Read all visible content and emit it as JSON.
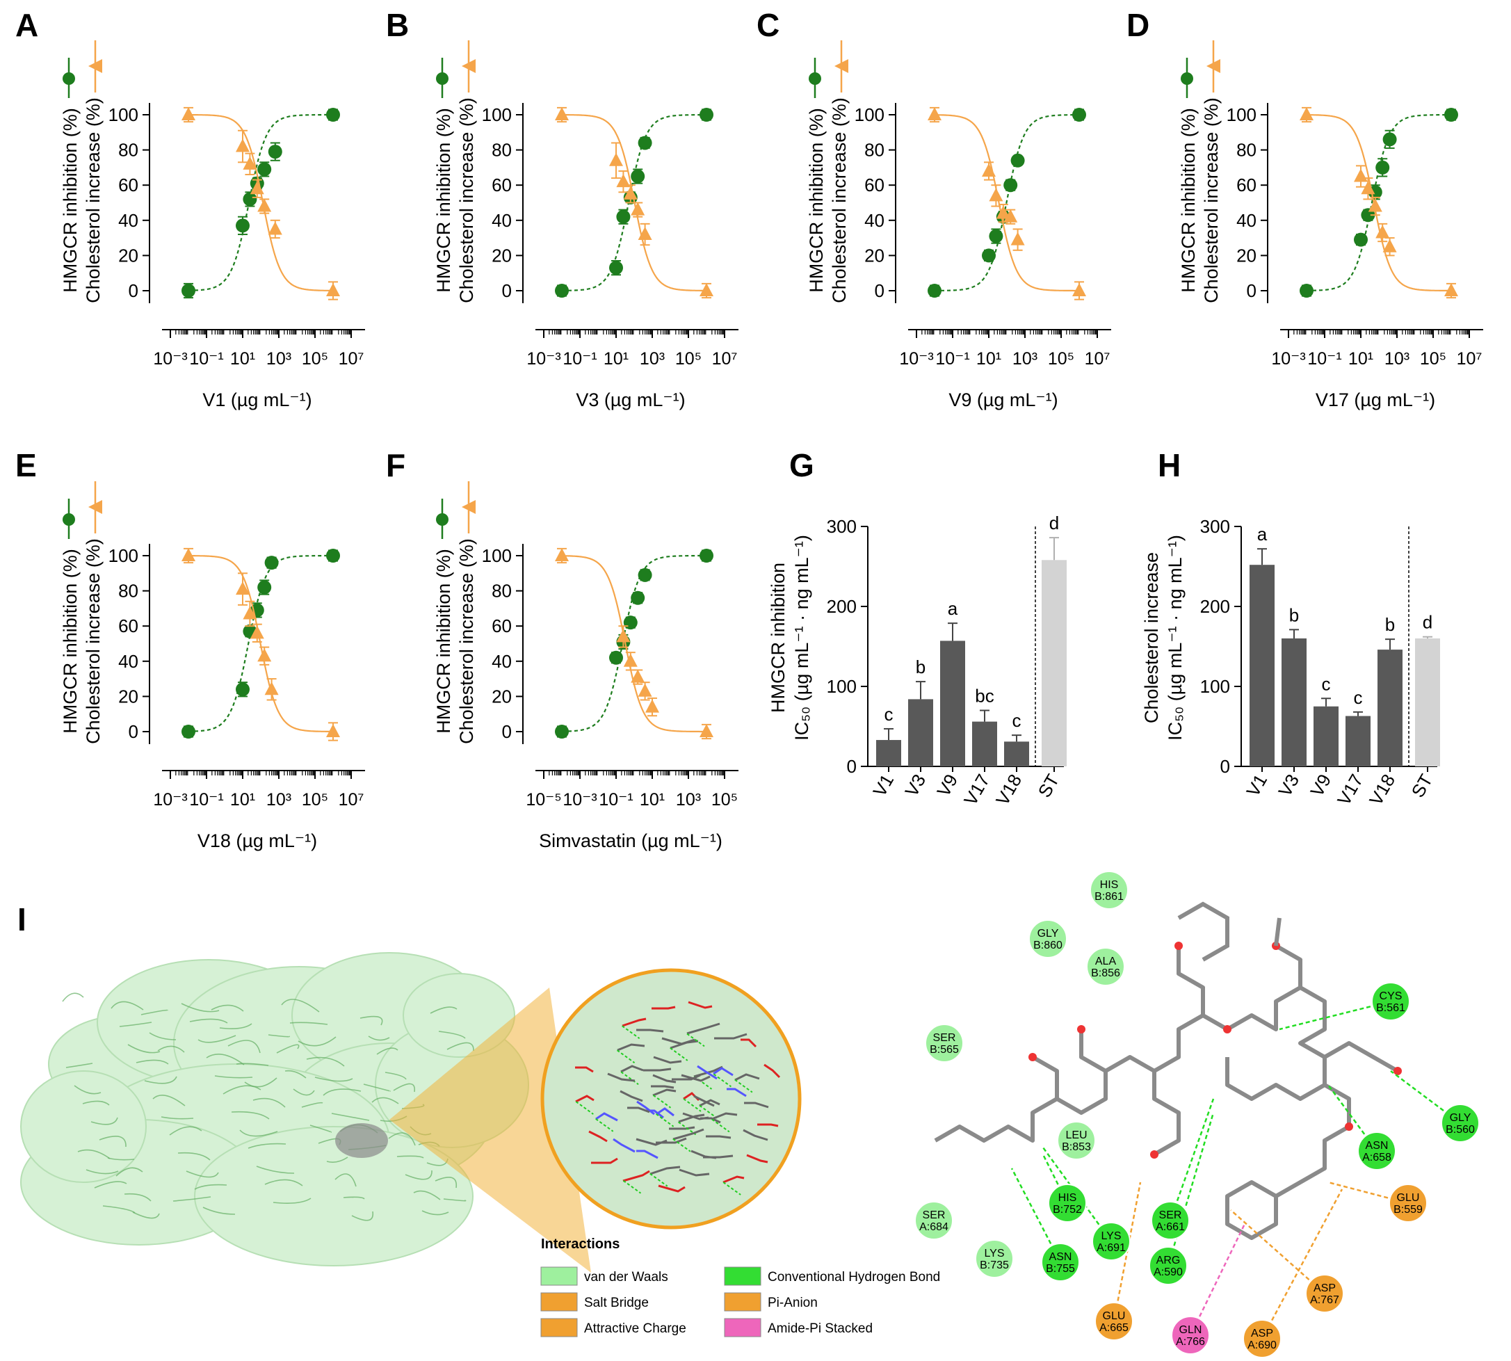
{
  "colors": {
    "hmgcr": "#1e7d1e",
    "cholesterol": "#f5a54a",
    "bar_dark": "#595959",
    "bar_light": "#d3d3d3",
    "vdw": "#9ef09e",
    "hbond": "#33dd33",
    "orange": "#f0a030",
    "pink": "#ee66bb"
  },
  "chart_data": [
    {
      "panel": "A",
      "type": "scatter",
      "x_scale": "log10",
      "ylabel": [
        "HMGCR inhibition (%)",
        "Cholesterol increase (%)"
      ],
      "xlabel": "V1 (µg mL⁻¹)",
      "xlim_exp": [
        -3,
        7
      ],
      "ylim": [
        0,
        100
      ],
      "x_ticks": [
        "10⁻³",
        "10⁻¹",
        "10¹",
        "10³",
        "10⁵",
        "10⁷"
      ],
      "y_ticks": [
        "0",
        "20",
        "40",
        "60",
        "80",
        "100"
      ],
      "series": [
        {
          "name": "HMGCR inhibition",
          "marker": "circle",
          "log10_x": [
            -2,
            1,
            1.4,
            1.8,
            2.2,
            2.8,
            6
          ],
          "y": [
            0,
            37,
            52,
            61,
            69,
            79,
            100
          ],
          "err": [
            4,
            5,
            4,
            3,
            4,
            5,
            3
          ]
        },
        {
          "name": "Cholesterol increase",
          "marker": "triangle",
          "log10_x": [
            -2,
            1,
            1.4,
            1.8,
            2.2,
            2.8,
            6
          ],
          "y": [
            100,
            82,
            72,
            58,
            48,
            35,
            0
          ],
          "err": [
            4,
            9,
            6,
            5,
            4,
            5,
            5
          ]
        }
      ]
    },
    {
      "panel": "B",
      "type": "scatter",
      "x_scale": "log10",
      "ylabel": [
        "HMGCR inhibition (%)",
        "Cholesterol increase (%)"
      ],
      "xlabel": "V3 (µg mL⁻¹)",
      "xlim_exp": [
        -3,
        7
      ],
      "ylim": [
        0,
        100
      ],
      "x_ticks": [
        "10⁻³",
        "10⁻¹",
        "10¹",
        "10³",
        "10⁵",
        "10⁷"
      ],
      "y_ticks": [
        "0",
        "20",
        "40",
        "60",
        "80",
        "100"
      ],
      "series": [
        {
          "name": "HMGCR inhibition",
          "marker": "circle",
          "log10_x": [
            -2,
            1,
            1.4,
            1.8,
            2.2,
            2.6,
            6
          ],
          "y": [
            0,
            13,
            42,
            53,
            65,
            84,
            100
          ],
          "err": [
            3,
            4,
            4,
            3,
            4,
            3,
            3
          ]
        },
        {
          "name": "Cholesterol increase",
          "marker": "triangle",
          "log10_x": [
            -2,
            1,
            1.4,
            1.8,
            2.2,
            2.6,
            6
          ],
          "y": [
            100,
            74,
            62,
            55,
            46,
            32,
            0
          ],
          "err": [
            4,
            10,
            6,
            5,
            4,
            6,
            4
          ]
        }
      ]
    },
    {
      "panel": "C",
      "type": "scatter",
      "x_scale": "log10",
      "ylabel": [
        "HMGCR inhibition (%)",
        "Cholesterol increase (%)"
      ],
      "xlabel": "V9 (µg mL⁻¹)",
      "xlim_exp": [
        -3,
        7
      ],
      "ylim": [
        0,
        100
      ],
      "x_ticks": [
        "10⁻³",
        "10⁻¹",
        "10¹",
        "10³",
        "10⁵",
        "10⁷"
      ],
      "y_ticks": [
        "0",
        "20",
        "40",
        "60",
        "80",
        "100"
      ],
      "series": [
        {
          "name": "HMGCR inhibition",
          "marker": "circle",
          "log10_x": [
            -2,
            1,
            1.4,
            1.8,
            2.2,
            2.6,
            6
          ],
          "y": [
            0,
            20,
            31,
            42,
            60,
            74,
            100
          ],
          "err": [
            3,
            3,
            4,
            3,
            3,
            2,
            3
          ]
        },
        {
          "name": "Cholesterol increase",
          "marker": "triangle",
          "log10_x": [
            -2,
            1,
            1.4,
            1.8,
            2.2,
            2.6,
            6
          ],
          "y": [
            100,
            68,
            54,
            44,
            42,
            29,
            0
          ],
          "err": [
            4,
            5,
            6,
            5,
            4,
            6,
            5
          ]
        }
      ]
    },
    {
      "panel": "D",
      "type": "scatter",
      "x_scale": "log10",
      "ylabel": [
        "HMGCR inhibition (%)",
        "Cholesterol increase (%)"
      ],
      "xlabel": "V17 (µg mL⁻¹)",
      "xlim_exp": [
        -3,
        7
      ],
      "ylim": [
        0,
        100
      ],
      "x_ticks": [
        "10⁻³",
        "10⁻¹",
        "10¹",
        "10³",
        "10⁵",
        "10⁷"
      ],
      "y_ticks": [
        "0",
        "20",
        "40",
        "60",
        "80",
        "100"
      ],
      "series": [
        {
          "name": "HMGCR inhibition",
          "marker": "circle",
          "log10_x": [
            -2,
            1,
            1.4,
            1.8,
            2.2,
            2.6,
            6
          ],
          "y": [
            0,
            29,
            43,
            56,
            70,
            86,
            100
          ],
          "err": [
            3,
            3,
            3,
            4,
            5,
            5,
            3
          ]
        },
        {
          "name": "Cholesterol increase",
          "marker": "triangle",
          "log10_x": [
            -2,
            1,
            1.4,
            1.8,
            2.2,
            2.6,
            6
          ],
          "y": [
            100,
            65,
            58,
            48,
            33,
            25,
            0
          ],
          "err": [
            4,
            6,
            6,
            5,
            5,
            5,
            4
          ]
        }
      ]
    },
    {
      "panel": "E",
      "type": "scatter",
      "x_scale": "log10",
      "ylabel": [
        "HMGCR inhibition (%)",
        "Cholesterol increase (%)"
      ],
      "xlabel": "V18 (µg mL⁻¹)",
      "xlim_exp": [
        -3,
        7
      ],
      "ylim": [
        0,
        100
      ],
      "x_ticks": [
        "10⁻³",
        "10⁻¹",
        "10¹",
        "10³",
        "10⁵",
        "10⁷"
      ],
      "y_ticks": [
        "0",
        "20",
        "40",
        "60",
        "80",
        "100"
      ],
      "series": [
        {
          "name": "HMGCR inhibition",
          "marker": "circle",
          "log10_x": [
            -2,
            1,
            1.4,
            1.8,
            2.2,
            2.6,
            6
          ],
          "y": [
            0,
            24,
            57,
            69,
            82,
            96,
            100
          ],
          "err": [
            3,
            4,
            3,
            4,
            4,
            3,
            3
          ]
        },
        {
          "name": "Cholesterol increase",
          "marker": "triangle",
          "log10_x": [
            -2,
            1,
            1.4,
            1.8,
            2.2,
            2.6,
            6
          ],
          "y": [
            100,
            81,
            67,
            56,
            43,
            24,
            0
          ],
          "err": [
            4,
            9,
            7,
            5,
            5,
            6,
            5
          ]
        }
      ]
    },
    {
      "panel": "F",
      "type": "scatter",
      "x_scale": "log10",
      "ylabel": [
        "HMGCR inhibition (%)",
        "Cholesterol increase (%)"
      ],
      "xlabel": "Simvastatin (µg mL⁻¹)",
      "xlim_exp": [
        -5,
        5
      ],
      "ylim": [
        0,
        100
      ],
      "x_ticks": [
        "10⁻⁵",
        "10⁻³",
        "10⁻¹",
        "10¹",
        "10³",
        "10⁵"
      ],
      "y_ticks": [
        "0",
        "20",
        "40",
        "60",
        "80",
        "100"
      ],
      "series": [
        {
          "name": "HMGCR inhibition",
          "marker": "circle",
          "log10_x": [
            -4,
            -1,
            -0.6,
            -0.2,
            0.2,
            0.6,
            4
          ],
          "y": [
            0,
            42,
            51,
            62,
            76,
            89,
            100
          ],
          "err": [
            3,
            3,
            4,
            3,
            3,
            3,
            3
          ]
        },
        {
          "name": "Cholesterol increase",
          "marker": "triangle",
          "log10_x": [
            -4,
            -0.6,
            -0.2,
            0.2,
            0.6,
            1,
            4
          ],
          "y": [
            100,
            54,
            40,
            31,
            23,
            14,
            0
          ],
          "err": [
            4,
            6,
            5,
            4,
            5,
            5,
            4
          ]
        }
      ]
    },
    {
      "panel": "G",
      "type": "bar",
      "ylabel": [
        "HMGCR inhibition",
        "IC₅₀ (µg mL⁻¹ · ng mL⁻¹)"
      ],
      "categories": [
        "V1",
        "V3",
        "V9",
        "V17",
        "V18",
        "ST"
      ],
      "values": [
        33,
        84,
        157,
        56,
        31,
        258
      ],
      "err": [
        14,
        22,
        22,
        14,
        8,
        28
      ],
      "letters": [
        "c",
        "b",
        "a",
        "bc",
        "c",
        "d"
      ],
      "ylim": [
        0,
        300
      ],
      "y_ticks": [
        "0",
        "100",
        "200",
        "300"
      ]
    },
    {
      "panel": "H",
      "type": "bar",
      "ylabel": [
        "Cholesterol increase",
        "IC₅₀ (µg mL⁻¹ · ng mL⁻¹)"
      ],
      "categories": [
        "V1",
        "V3",
        "V9",
        "V17",
        "V18",
        "ST"
      ],
      "values": [
        252,
        160,
        75,
        63,
        146,
        160
      ],
      "err": [
        20,
        11,
        10,
        5,
        13,
        2
      ],
      "letters": [
        "a",
        "b",
        "c",
        "c",
        "b",
        "d"
      ],
      "ylim": [
        0,
        300
      ],
      "y_ticks": [
        "0",
        "100",
        "200",
        "300"
      ]
    }
  ],
  "panel_i": {
    "label": "I",
    "legend_title": "Interactions",
    "legend_items": [
      {
        "label": "van der Waals",
        "color": "#9ef09e"
      },
      {
        "label": "Conventional Hydrogen Bond",
        "color": "#33dd33"
      },
      {
        "label": "Salt Bridge",
        "color": "#f0a030"
      },
      {
        "label": "Pi-Anion",
        "color": "#f0a030"
      },
      {
        "label": "Attractive Charge",
        "color": "#f0a030"
      },
      {
        "label": "Amide-Pi Stacked",
        "color": "#ee66bb"
      }
    ],
    "residues": [
      {
        "name": "HIS",
        "num": "B:861",
        "type": "vdw"
      },
      {
        "name": "GLY",
        "num": "B:860",
        "type": "vdw"
      },
      {
        "name": "ALA",
        "num": "B:856",
        "type": "vdw"
      },
      {
        "name": "SER",
        "num": "B:565",
        "type": "vdw"
      },
      {
        "name": "CYS",
        "num": "B:561",
        "type": "hbond"
      },
      {
        "name": "GLY",
        "num": "B:560",
        "type": "hbond"
      },
      {
        "name": "LEU",
        "num": "B:853",
        "type": "vdw"
      },
      {
        "name": "ASN",
        "num": "A:658",
        "type": "hbond"
      },
      {
        "name": "GLU",
        "num": "B:559",
        "type": "orange"
      },
      {
        "name": "HIS",
        "num": "B:752",
        "type": "hbond"
      },
      {
        "name": "SER",
        "num": "A:684",
        "type": "vdw"
      },
      {
        "name": "LYS",
        "num": "A:691",
        "type": "hbond"
      },
      {
        "name": "SER",
        "num": "A:661",
        "type": "hbond"
      },
      {
        "name": "LYS",
        "num": "B:735",
        "type": "vdw"
      },
      {
        "name": "ASN",
        "num": "B:755",
        "type": "hbond"
      },
      {
        "name": "ARG",
        "num": "A:590",
        "type": "hbond"
      },
      {
        "name": "ASP",
        "num": "A:767",
        "type": "orange"
      },
      {
        "name": "GLU",
        "num": "A:665",
        "type": "orange"
      },
      {
        "name": "GLN",
        "num": "A:766",
        "type": "pink"
      },
      {
        "name": "ASP",
        "num": "A:690",
        "type": "orange"
      }
    ]
  }
}
